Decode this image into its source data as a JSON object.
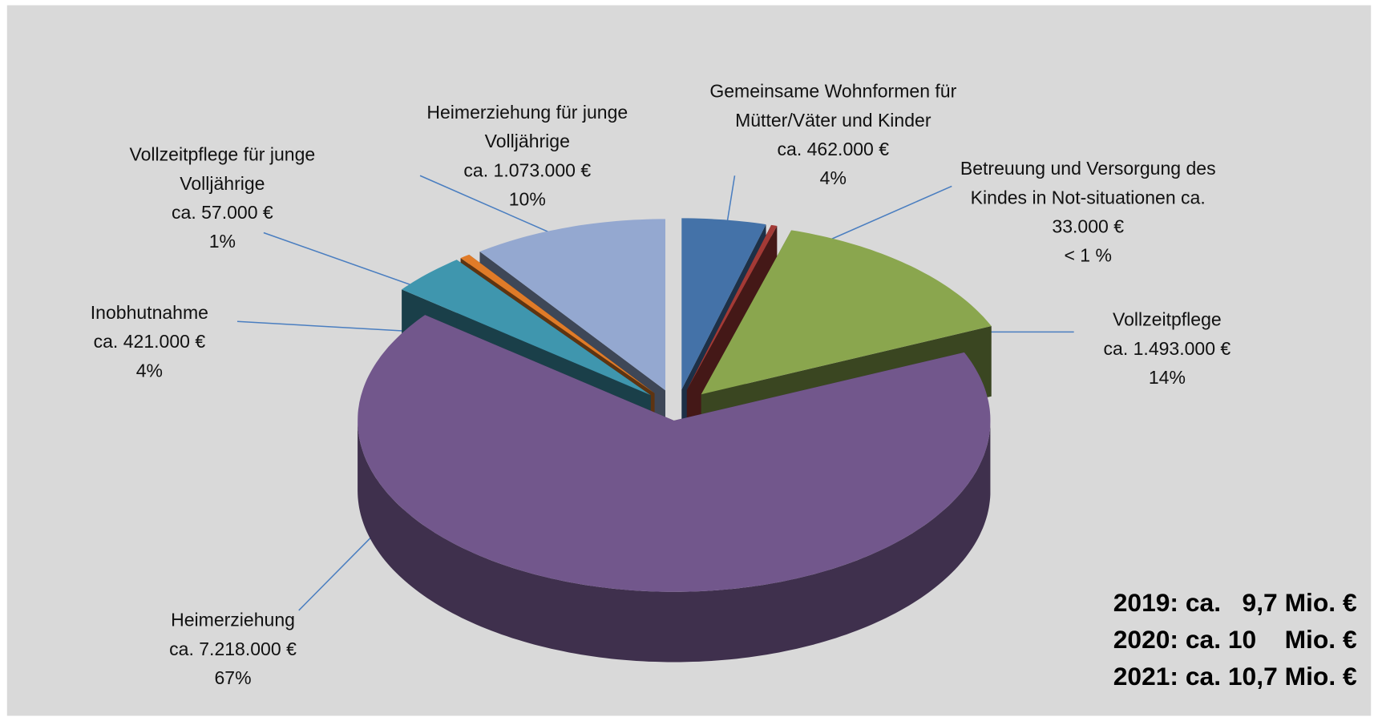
{
  "chart_data": {
    "type": "pie3d",
    "categories": [
      "Gemeinsame Wohnformen für Mütter/Väter und Kinder",
      "Betreuung und Versorgung des Kindes in Not-situationen",
      "Vollzeitpflege",
      "Heimerziehung",
      "Inobhutnahme",
      "Vollzeitpflege für junge Volljährige",
      "Heimerziehung für junge Volljährige"
    ],
    "values": [
      462000,
      33000,
      1493000,
      7218000,
      421000,
      57000,
      1073000
    ],
    "value_labels": [
      "ca. 462.000 €",
      "ca. 33.000 €",
      "ca. 1.493.000 €",
      "ca. 7.218.000 €",
      "ca. 421.000 €",
      "ca. 57.000 €",
      "ca. 1.073.000 €"
    ],
    "percent_labels": [
      "4%",
      "< 1 %",
      "14%",
      "67%",
      "4%",
      "1%",
      "10%"
    ],
    "colors": [
      "#4472a8",
      "#a33a36",
      "#8aa64e",
      "#72578c",
      "#3f96ae",
      "#e07b28",
      "#94a8d0"
    ],
    "totals": [
      "2019: ca.   9,7 Mio. €",
      "2020: ca. 10    Mio. €",
      "2021: ca. 10,7 Mio. €"
    ]
  }
}
